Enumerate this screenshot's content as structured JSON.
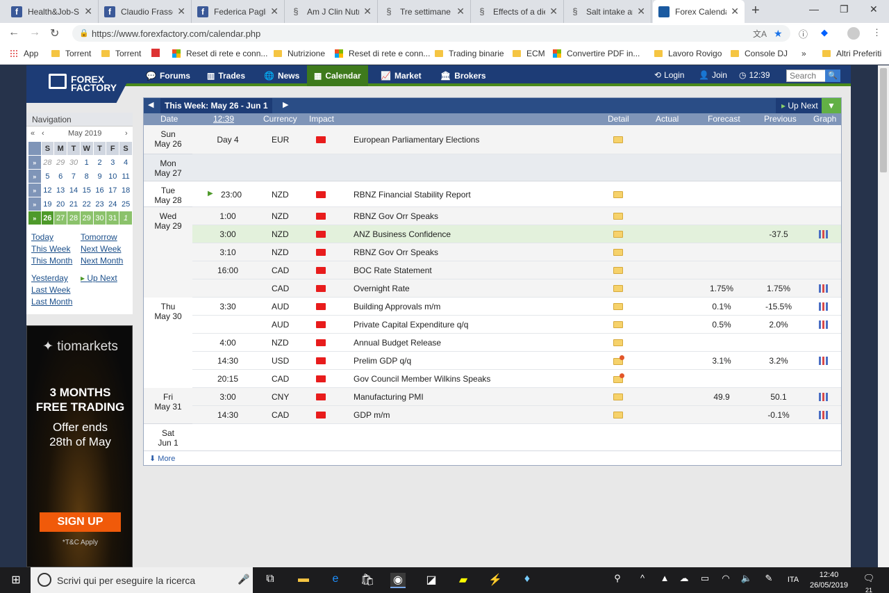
{
  "browser": {
    "tabs": [
      {
        "label": "Health&Job-S",
        "icon": "facebook-icon"
      },
      {
        "label": "Claudio Frasso",
        "icon": "facebook-icon"
      },
      {
        "label": "Federica Pagli",
        "icon": "facebook-icon"
      },
      {
        "label": "Am J Clin Nutr",
        "icon": "link-icon"
      },
      {
        "label": "Tre settimane",
        "icon": "link-icon"
      },
      {
        "label": "Effects of a die",
        "icon": "link-icon"
      },
      {
        "label": "Salt intake and",
        "icon": "link-icon"
      },
      {
        "label": "Forex Calendar",
        "icon": "forexfactory-icon"
      }
    ],
    "url": "https://www.forexfactory.com/calendar.php",
    "bookmarks": [
      "App",
      "Torrent",
      "Torrent",
      "Reset di rete e conn...",
      "Nutrizione",
      "Reset di rete e conn...",
      "Trading binarie",
      "ECM",
      "Convertire PDF in...",
      "Lavoro Rovigo",
      "Console DJ"
    ],
    "bookmarks_overflow": "»",
    "other_bookmarks": "Altri Preferiti"
  },
  "site": {
    "logo_line1": "FOREX",
    "logo_line2": "FACTORY",
    "nav": [
      "Forums",
      "Trades",
      "News",
      "Calendar",
      "Market",
      "Brokers"
    ],
    "login": "Login",
    "join": "Join",
    "time": "12:39",
    "search_placeholder": "Search"
  },
  "sidebar": {
    "title": "Navigation",
    "month": "May 2019",
    "prev_year": "«",
    "prev_month": "‹",
    "next_month": "›",
    "weekdays": [
      "S",
      "M",
      "T",
      "W",
      "T",
      "F",
      "S"
    ],
    "weeks": [
      [
        "28",
        "29",
        "30",
        "1",
        "2",
        "3",
        "4"
      ],
      [
        "5",
        "6",
        "7",
        "8",
        "9",
        "10",
        "11"
      ],
      [
        "12",
        "13",
        "14",
        "15",
        "16",
        "17",
        "18"
      ],
      [
        "19",
        "20",
        "21",
        "22",
        "23",
        "24",
        "25"
      ],
      [
        "26",
        "27",
        "28",
        "29",
        "30",
        "31",
        "1"
      ]
    ],
    "links": {
      "today": "Today",
      "tomorrow": "Tomorrow",
      "this_week": "This Week",
      "next_week": "Next Week",
      "this_month": "This Month",
      "next_month": "Next Month",
      "yesterday": "Yesterday",
      "up_next": "Up Next",
      "last_week": "Last Week",
      "last_month": "Last Month"
    }
  },
  "ad": {
    "brand": "tiomarkets",
    "line1": "3 MONTHS",
    "line2": "FREE TRADING",
    "line3": "Offer ends",
    "line4": "28th of May",
    "cta": "SIGN UP",
    "tc": "*T&C Apply"
  },
  "calendar": {
    "week_title": "This Week: May 26 - Jun 1",
    "up_next": "Up Next",
    "columns": {
      "date": "Date",
      "time": "12:39",
      "currency": "Currency",
      "impact": "Impact",
      "detail": "Detail",
      "actual": "Actual",
      "forecast": "Forecast",
      "previous": "Previous",
      "graph": "Graph"
    },
    "days": [
      {
        "day": "Sun",
        "date": "May 26"
      },
      {
        "day": "Mon",
        "date": "May 27"
      },
      {
        "day": "Tue",
        "date": "May 28"
      },
      {
        "day": "Wed",
        "date": "May 29"
      },
      {
        "day": "Thu",
        "date": "May 30"
      },
      {
        "day": "Fri",
        "date": "May 31"
      },
      {
        "day": "Sat",
        "date": "Jun 1"
      }
    ],
    "events": [
      {
        "time": "Day 4",
        "currency": "EUR",
        "event": "European Parliamentary Elections",
        "forecast": "",
        "previous": ""
      },
      {
        "time": "23:00",
        "currency": "NZD",
        "event": "RBNZ Financial Stability Report",
        "forecast": "",
        "previous": ""
      },
      {
        "time": "1:00",
        "currency": "NZD",
        "event": "RBNZ Gov Orr Speaks",
        "forecast": "",
        "previous": ""
      },
      {
        "time": "3:00",
        "currency": "NZD",
        "event": "ANZ Business Confidence",
        "forecast": "",
        "previous": "-37.5"
      },
      {
        "time": "3:10",
        "currency": "NZD",
        "event": "RBNZ Gov Orr Speaks",
        "forecast": "",
        "previous": ""
      },
      {
        "time": "16:00",
        "currency": "CAD",
        "event": "BOC Rate Statement",
        "forecast": "",
        "previous": ""
      },
      {
        "time": "",
        "currency": "CAD",
        "event": "Overnight Rate",
        "forecast": "1.75%",
        "previous": "1.75%"
      },
      {
        "time": "3:30",
        "currency": "AUD",
        "event": "Building Approvals m/m",
        "forecast": "0.1%",
        "previous": "-15.5%"
      },
      {
        "time": "",
        "currency": "AUD",
        "event": "Private Capital Expenditure q/q",
        "forecast": "0.5%",
        "previous": "2.0%"
      },
      {
        "time": "4:00",
        "currency": "NZD",
        "event": "Annual Budget Release",
        "forecast": "",
        "previous": ""
      },
      {
        "time": "14:30",
        "currency": "USD",
        "event": "Prelim GDP q/q",
        "forecast": "3.1%",
        "previous": "3.2%"
      },
      {
        "time": "20:15",
        "currency": "CAD",
        "event": "Gov Council Member Wilkins Speaks",
        "forecast": "",
        "previous": ""
      },
      {
        "time": "3:00",
        "currency": "CNY",
        "event": "Manufacturing PMI",
        "forecast": "49.9",
        "previous": "50.1"
      },
      {
        "time": "14:30",
        "currency": "CAD",
        "event": "GDP m/m",
        "forecast": "",
        "previous": "-0.1%"
      }
    ],
    "more": "More"
  },
  "taskbar": {
    "search": "Scrivi qui per eseguire la ricerca",
    "lang": "ITA",
    "time": "12:40",
    "date": "26/05/2019",
    "notif": "21"
  },
  "colors": {
    "accent_green": "#4a8a1a",
    "header_blue": "#1d3c76",
    "impact_red": "#e81c1c"
  }
}
